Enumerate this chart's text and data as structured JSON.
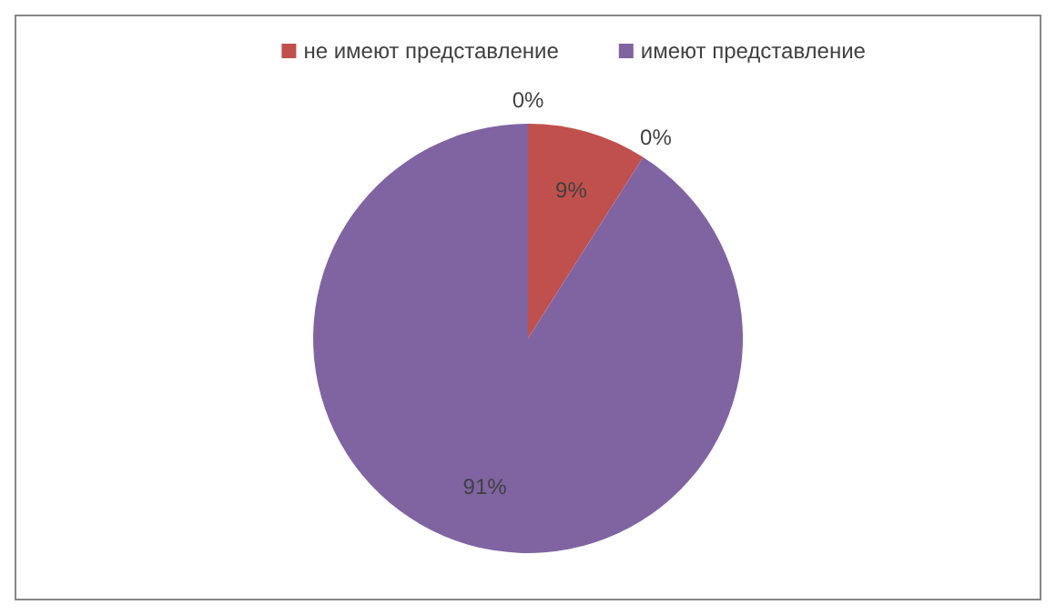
{
  "chart_data": {
    "type": "pie",
    "categories": [
      null,
      "не имеют представление",
      null,
      "имеют представление"
    ],
    "values": [
      0,
      9,
      0,
      91
    ],
    "colors": [
      "#4f81bd",
      "#c0504d",
      "#9bbb59",
      "#8064a2"
    ],
    "value_labels": [
      "0%",
      "9%",
      "0%",
      "91%"
    ],
    "legend": "top"
  }
}
